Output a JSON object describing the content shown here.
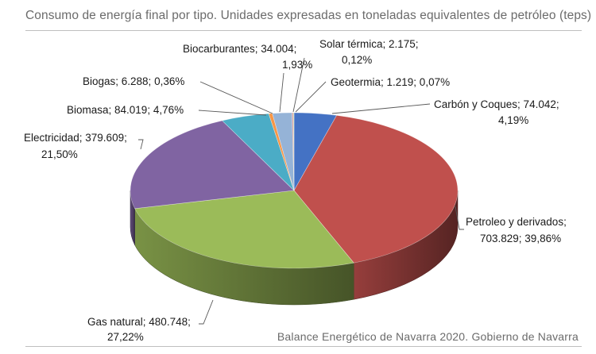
{
  "title": "Consumo de energía final por tipo. Unidades expresadas en toneladas equivalentes de petróleo (teps)",
  "source": "Balance Energético de Navarra 2020. Gobierno de Navarra",
  "chart_data": {
    "type": "pie",
    "style": "3d",
    "title": "Consumo de energía final por tipo. Unidades expresadas en toneladas equivalentes de petróleo (teps)",
    "units": "teps",
    "slices": [
      {
        "name": "Carbón y Coques",
        "value": 74042,
        "value_label": "74.042",
        "percent_label": "4,19%",
        "color": "#4472c4"
      },
      {
        "name": "Petroleo y derivados",
        "value": 703829,
        "value_label": "703.829",
        "percent_label": "39,86%",
        "color": "#c0504d"
      },
      {
        "name": "Gas natural",
        "value": 480748,
        "value_label": "480.748",
        "percent_label": "27,22%",
        "color": "#9bbb59"
      },
      {
        "name": "Electricidad",
        "value": 379609,
        "value_label": "379.609",
        "percent_label": "21,50%",
        "color": "#8064a2"
      },
      {
        "name": "Biomasa",
        "value": 84019,
        "value_label": "84.019",
        "percent_label": "4,76%",
        "color": "#4bacc6"
      },
      {
        "name": "Biogas",
        "value": 6288,
        "value_label": "6.288",
        "percent_label": "0,36%",
        "color": "#f79646"
      },
      {
        "name": "Biocarburantes",
        "value": 34004,
        "value_label": "34.004",
        "percent_label": "1,93%",
        "color": "#95b3d7"
      },
      {
        "name": "Solar térmica",
        "value": 2175,
        "value_label": "2.175",
        "percent_label": "0,12%",
        "color": "#d99694"
      },
      {
        "name": "Geotermia",
        "value": 1219,
        "value_label": "1.219",
        "percent_label": "0,07%",
        "color": "#c3d69b"
      }
    ],
    "data_labels": [
      [
        "Carbón y Coques; 74.042;",
        "4,19%"
      ],
      [
        "Petroleo y derivados;",
        "703.829; 39,86%"
      ],
      [
        "Gas natural; 480.748;",
        "27,22%"
      ],
      [
        "Electricidad; 379.609;",
        "21,50%"
      ],
      [
        "Biomasa; 84.019; 4,76%"
      ],
      [
        "Biogas; 6.288; 0,36%"
      ],
      [
        "Biocarburantes; 34.004;",
        "1,93%"
      ],
      [
        "Solar térmica; 2.175;",
        "0,12%"
      ],
      [
        "Geotermia; 1.219; 0,07%"
      ]
    ]
  }
}
